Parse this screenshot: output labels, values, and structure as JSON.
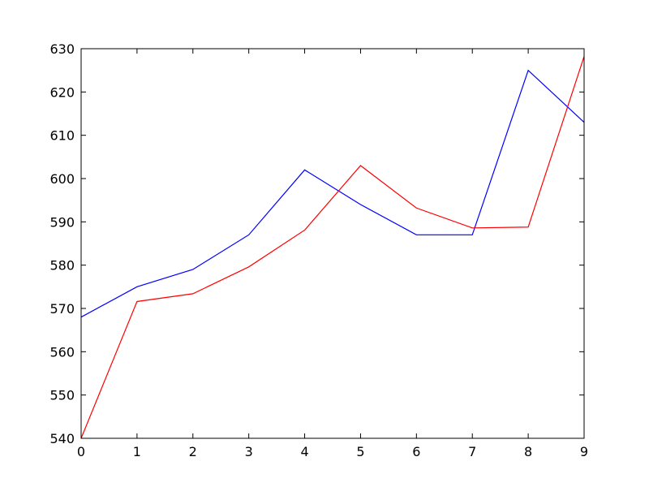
{
  "chart_data": {
    "type": "line",
    "title": "",
    "xlabel": "",
    "ylabel": "",
    "x": [
      0,
      1,
      2,
      3,
      4,
      5,
      6,
      7,
      8,
      9
    ],
    "xlim": [
      0,
      9
    ],
    "ylim": [
      540,
      630
    ],
    "xticks": [
      0,
      1,
      2,
      3,
      4,
      5,
      6,
      7,
      8,
      9
    ],
    "yticks": [
      540,
      550,
      560,
      570,
      580,
      590,
      600,
      610,
      620,
      630
    ],
    "grid": false,
    "legend": "none",
    "series": [
      {
        "color": "#0000ff",
        "values": [
          568,
          575,
          579,
          587,
          602,
          594,
          587,
          587,
          625,
          613
        ]
      },
      {
        "color": "#ff0000",
        "values": [
          540,
          571.6,
          573.4,
          579.6,
          588.1,
          603.0,
          593.2,
          588.6,
          588.8,
          628.2
        ]
      }
    ]
  }
}
